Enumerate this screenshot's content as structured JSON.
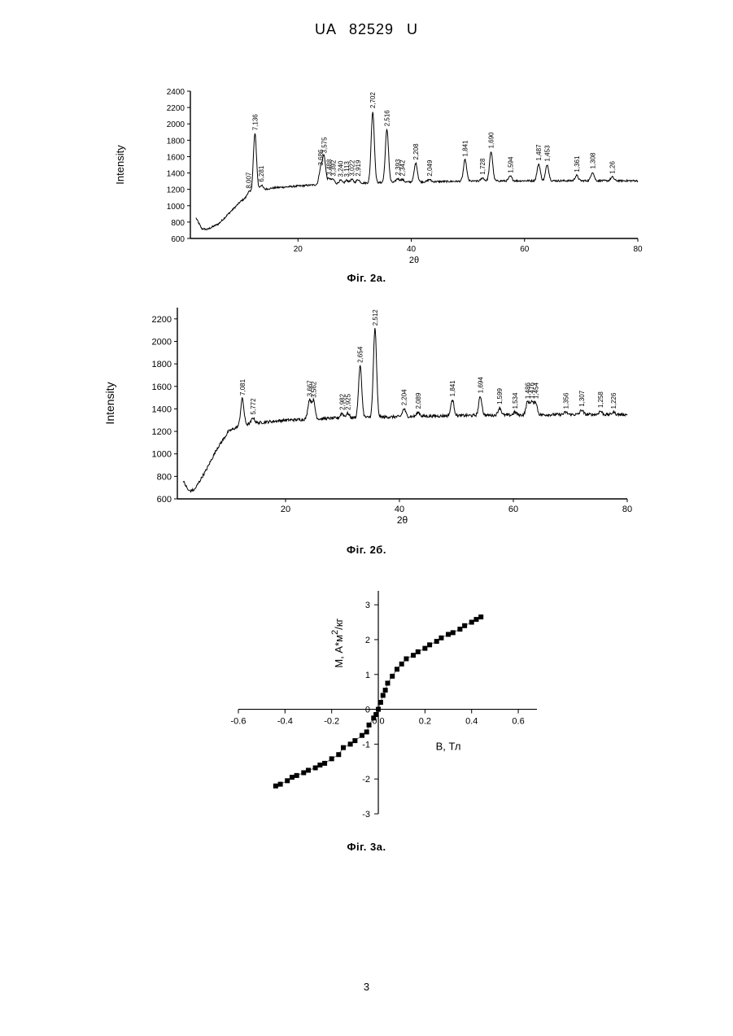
{
  "header": {
    "text": "UA   82529   U"
  },
  "page_number": "3",
  "chart_data": [
    {
      "id": "fig2a",
      "type": "line",
      "caption": "Фіг. 2а.",
      "xlabel": "2θ",
      "ylabel": "Intensity",
      "xlim": [
        1,
        80
      ],
      "ylim": [
        600,
        2400
      ],
      "xticks": [
        20,
        40,
        60,
        80
      ],
      "yticks": [
        600,
        800,
        1000,
        1200,
        1400,
        1600,
        1800,
        2000,
        2200,
        2400
      ],
      "grid": false,
      "baseline": [
        [
          2,
          850
        ],
        [
          3,
          720
        ],
        [
          4,
          710
        ],
        [
          6,
          780
        ],
        [
          8,
          920
        ],
        [
          10,
          1060
        ],
        [
          12,
          1150
        ],
        [
          14,
          1200
        ],
        [
          16,
          1220
        ],
        [
          20,
          1240
        ],
        [
          24,
          1260
        ],
        [
          30,
          1275
        ],
        [
          40,
          1290
        ],
        [
          50,
          1300
        ],
        [
          60,
          1305
        ],
        [
          70,
          1305
        ],
        [
          80,
          1305
        ]
      ],
      "peaks": [
        {
          "x": 11.3,
          "height": 1170,
          "label": "8,007"
        },
        {
          "x": 12.4,
          "height": 1880,
          "label": "7,136"
        },
        {
          "x": 13.5,
          "height": 1250,
          "label": "6,281"
        },
        {
          "x": 24.0,
          "height": 1450,
          "label": "3,686"
        },
        {
          "x": 24.6,
          "height": 1600,
          "label": "3,575"
        },
        {
          "x": 25.5,
          "height": 1330,
          "label": "3,488"
        },
        {
          "x": 26.2,
          "height": 1320,
          "label": "3,392"
        },
        {
          "x": 27.5,
          "height": 1310,
          "label": "3,240"
        },
        {
          "x": 28.6,
          "height": 1310,
          "label": "3,113"
        },
        {
          "x": 29.5,
          "height": 1320,
          "label": "3,022"
        },
        {
          "x": 30.6,
          "height": 1320,
          "label": "2,919"
        },
        {
          "x": 33.2,
          "height": 2150,
          "label": "2,702"
        },
        {
          "x": 35.7,
          "height": 1930,
          "label": "2,516"
        },
        {
          "x": 37.6,
          "height": 1330,
          "label": "2,393"
        },
        {
          "x": 38.4,
          "height": 1320,
          "label": "2,342"
        },
        {
          "x": 40.8,
          "height": 1520,
          "label": "2,208"
        },
        {
          "x": 43.2,
          "height": 1320,
          "label": "2,049"
        },
        {
          "x": 49.5,
          "height": 1560,
          "label": "1,841"
        },
        {
          "x": 52.6,
          "height": 1340,
          "label": "1,728"
        },
        {
          "x": 54.1,
          "height": 1660,
          "label": "1,690"
        },
        {
          "x": 57.5,
          "height": 1360,
          "label": "1,594"
        },
        {
          "x": 62.5,
          "height": 1510,
          "label": "1,487"
        },
        {
          "x": 64.0,
          "height": 1500,
          "label": "1,453"
        },
        {
          "x": 69.2,
          "height": 1370,
          "label": "1,361"
        },
        {
          "x": 72.0,
          "height": 1410,
          "label": "1,308"
        },
        {
          "x": 75.5,
          "height": 1350,
          "label": "1,26"
        }
      ]
    },
    {
      "id": "fig2b",
      "type": "line",
      "caption": "Фіг. 2б.",
      "xlabel": "2θ",
      "ylabel": "Intensity",
      "xlim": [
        1,
        80
      ],
      "ylim": [
        600,
        2300
      ],
      "xticks": [
        20,
        40,
        60,
        80
      ],
      "yticks": [
        600,
        800,
        1000,
        1200,
        1400,
        1600,
        1800,
        2000,
        2200
      ],
      "grid": false,
      "baseline": [
        [
          2,
          760
        ],
        [
          3,
          670
        ],
        [
          4,
          680
        ],
        [
          6,
          850
        ],
        [
          8,
          1050
        ],
        [
          10,
          1200
        ],
        [
          12,
          1250
        ],
        [
          14,
          1270
        ],
        [
          20,
          1300
        ],
        [
          30,
          1320
        ],
        [
          40,
          1330
        ],
        [
          50,
          1340
        ],
        [
          60,
          1345
        ],
        [
          70,
          1350
        ],
        [
          80,
          1350
        ]
      ],
      "peaks": [
        {
          "x": 12.4,
          "height": 1490,
          "label": "7,081"
        },
        {
          "x": 14.3,
          "height": 1320,
          "label": "5,772"
        },
        {
          "x": 24.2,
          "height": 1480,
          "label": "3,667"
        },
        {
          "x": 24.9,
          "height": 1470,
          "label": "3,562"
        },
        {
          "x": 29.9,
          "height": 1360,
          "label": "2,982"
        },
        {
          "x": 30.9,
          "height": 1360,
          "label": "2,925"
        },
        {
          "x": 33.1,
          "height": 1780,
          "label": "2,654"
        },
        {
          "x": 35.7,
          "height": 2110,
          "label": "2,512"
        },
        {
          "x": 40.8,
          "height": 1400,
          "label": "2,204"
        },
        {
          "x": 43.3,
          "height": 1370,
          "label": "2,089"
        },
        {
          "x": 49.3,
          "height": 1480,
          "label": "1,841"
        },
        {
          "x": 54.2,
          "height": 1510,
          "label": "1,694"
        },
        {
          "x": 57.6,
          "height": 1410,
          "label": "1,599"
        },
        {
          "x": 60.3,
          "height": 1370,
          "label": "1,534"
        },
        {
          "x": 62.5,
          "height": 1460,
          "label": "1,486"
        },
        {
          "x": 63.2,
          "height": 1460,
          "label": "1,476"
        },
        {
          "x": 63.9,
          "height": 1460,
          "label": "1,454"
        },
        {
          "x": 69.2,
          "height": 1370,
          "label": "1,356"
        },
        {
          "x": 72.0,
          "height": 1390,
          "label": "1,307"
        },
        {
          "x": 75.3,
          "height": 1380,
          "label": "1,258"
        },
        {
          "x": 77.6,
          "height": 1370,
          "label": "1,226"
        }
      ]
    },
    {
      "id": "fig3a",
      "type": "scatter",
      "caption": "Фіг. 3а.",
      "xlabel": "B, Тл",
      "ylabel": "M, А*м",
      "ylabel_sup": "2",
      "ylabel_tail": "/кг",
      "xlim": [
        -0.6,
        0.68
      ],
      "ylim": [
        -3,
        3.4
      ],
      "xticks": [
        -0.6,
        -0.4,
        -0.2,
        0.0,
        0.2,
        0.4,
        0.6
      ],
      "yticks": [
        -3,
        -2,
        -1,
        0,
        1,
        2,
        3
      ],
      "grid": false,
      "x": [
        -0.44,
        -0.42,
        -0.39,
        -0.37,
        -0.35,
        -0.32,
        -0.3,
        -0.27,
        -0.25,
        -0.23,
        -0.2,
        -0.17,
        -0.15,
        -0.12,
        -0.1,
        -0.07,
        -0.05,
        -0.04,
        -0.02,
        -0.01,
        0.0,
        0.01,
        0.02,
        0.03,
        0.04,
        0.06,
        0.08,
        0.1,
        0.12,
        0.15,
        0.17,
        0.2,
        0.22,
        0.25,
        0.27,
        0.3,
        0.32,
        0.35,
        0.37,
        0.4,
        0.42,
        0.44
      ],
      "y": [
        -2.2,
        -2.15,
        -2.05,
        -1.95,
        -1.9,
        -1.82,
        -1.75,
        -1.68,
        -1.6,
        -1.55,
        -1.42,
        -1.3,
        -1.1,
        -1.0,
        -0.9,
        -0.75,
        -0.65,
        -0.45,
        -0.25,
        -0.15,
        0.0,
        0.2,
        0.4,
        0.55,
        0.75,
        0.95,
        1.15,
        1.3,
        1.45,
        1.55,
        1.65,
        1.75,
        1.85,
        1.95,
        2.05,
        2.15,
        2.2,
        2.3,
        2.4,
        2.5,
        2.58,
        2.65
      ]
    }
  ]
}
